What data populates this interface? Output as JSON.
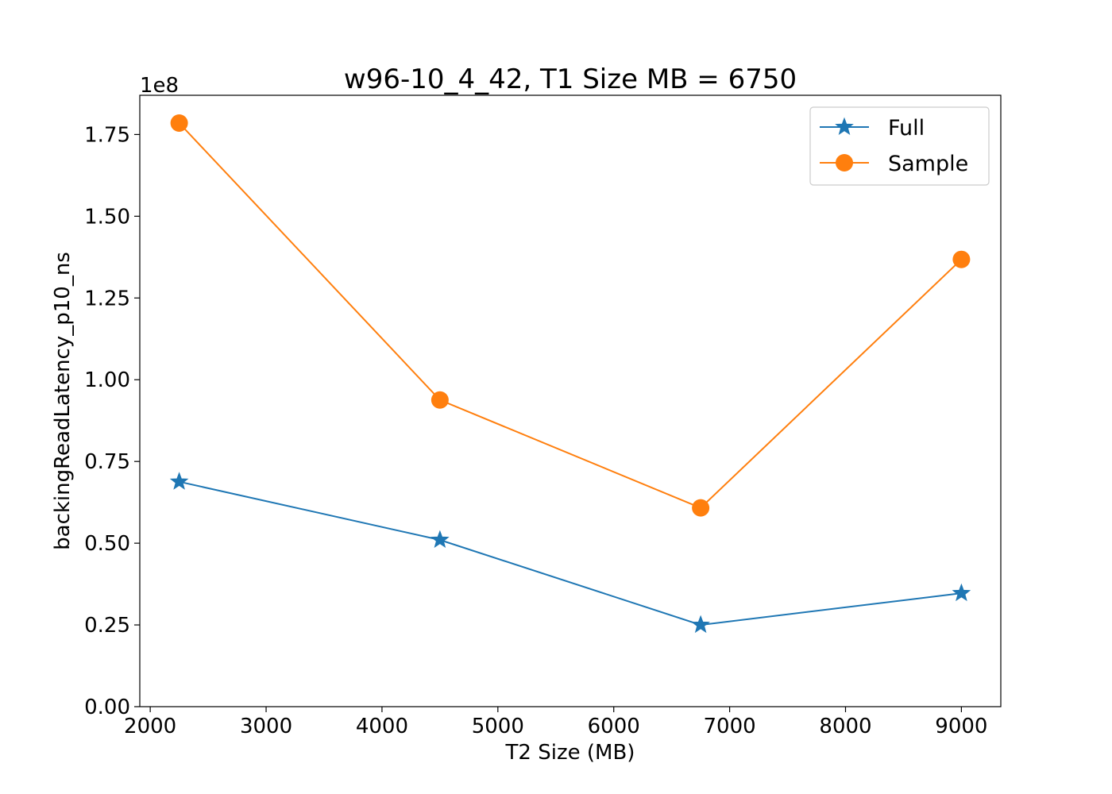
{
  "chart_data": {
    "type": "line",
    "title": "w96-10_4_42, T1 Size MB = 6750",
    "xlabel": "T2 Size (MB)",
    "ylabel": "backingReadLatency_p10_ns",
    "y_offset_label": "1e8",
    "y_scale": 100000000,
    "xlim": [
      1910,
      9340
    ],
    "ylim": [
      0,
      187000000
    ],
    "x_ticks": [
      2000,
      3000,
      4000,
      5000,
      6000,
      7000,
      8000,
      9000
    ],
    "x_tick_labels": [
      "2000",
      "3000",
      "4000",
      "5000",
      "6000",
      "7000",
      "8000",
      "9000"
    ],
    "y_ticks": [
      0,
      25000000,
      50000000,
      75000000,
      100000000,
      125000000,
      150000000,
      175000000
    ],
    "y_tick_labels": [
      "0.00",
      "0.25",
      "0.50",
      "0.75",
      "1.00",
      "1.25",
      "1.50",
      "1.75"
    ],
    "x": [
      2250,
      4500,
      6750,
      9000
    ],
    "series": [
      {
        "name": "Full",
        "marker": "star",
        "color": "#1f77b4",
        "values": [
          68800000,
          51000000,
          25000000,
          34700000
        ]
      },
      {
        "name": "Sample",
        "marker": "circle",
        "color": "#ff7f0e",
        "values": [
          178500000,
          93800000,
          60800000,
          136800000
        ]
      }
    ],
    "grid": false,
    "legend_position": "top-right"
  }
}
